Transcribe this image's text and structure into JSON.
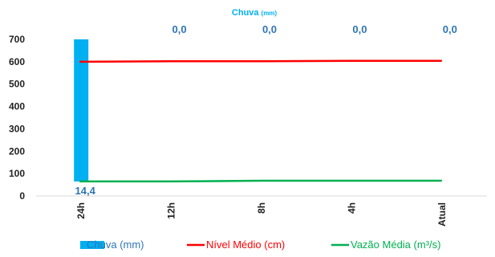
{
  "chart_data": {
    "type": "bar+line",
    "title": "Chuva",
    "title_unit": "(mm)",
    "categories": [
      "24h",
      "12h",
      "8h",
      "4h",
      "Atual"
    ],
    "ylim": [
      0,
      700
    ],
    "yticks": [
      "0",
      "100",
      "200",
      "300",
      "400",
      "500",
      "600",
      "700"
    ],
    "bar_series": {
      "name": "Chuva (mm)",
      "values": [
        14.4,
        0.0,
        0.0,
        0.0,
        0.0
      ],
      "top_labels": [
        "",
        "0,0",
        "0,0",
        "0,0",
        "0,0"
      ],
      "bottom_labels": [
        "14,4",
        "",
        "",
        "",
        ""
      ],
      "color": "#00b0f0",
      "label_color": "#2e75b6"
    },
    "line_series": [
      {
        "name": "Nível Médio (cm)",
        "values": [
          600,
          602,
          602,
          604,
          604
        ],
        "color": "#ff0000"
      },
      {
        "name": "Vazão Média (m³/s)",
        "values": [
          65,
          65,
          68,
          68,
          68
        ],
        "color": "#00b050"
      }
    ],
    "legend_position": "bottom",
    "grid": false
  }
}
